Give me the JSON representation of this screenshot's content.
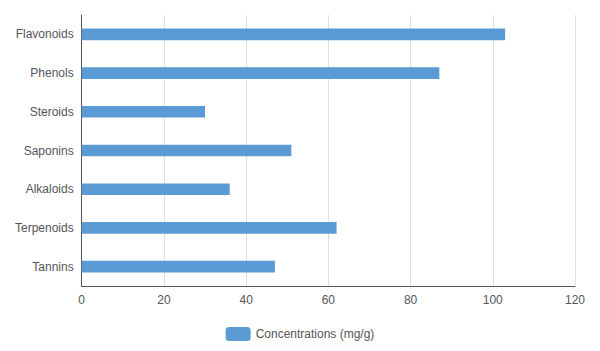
{
  "chart_data": {
    "type": "bar",
    "orientation": "horizontal",
    "categories": [
      "Flavonoids",
      "Phenols",
      "Steroids",
      "Saponins",
      "Alkaloids",
      "Terpenoids",
      "Tannins"
    ],
    "series": [
      {
        "name": "Concentrations (mg/g)",
        "color": "#5B9BD5",
        "values": [
          103,
          87,
          30,
          51,
          36,
          62,
          47
        ]
      }
    ],
    "xlim": [
      0,
      120
    ],
    "xticks": [
      0,
      20,
      40,
      60,
      80,
      100,
      120
    ],
    "grid": true,
    "legend": "bottom"
  }
}
